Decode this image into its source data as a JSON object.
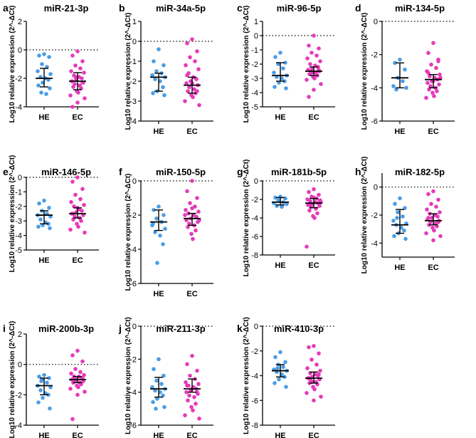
{
  "figure": {
    "y_label": "Log10 relative expression (2^-ΔCt)"
  },
  "colors": {
    "HE": "#4a9de6",
    "EC": "#e63ab9",
    "axis": "#000000"
  },
  "chart_data": [
    {
      "type": "scatter",
      "letter": "a",
      "title": "miR-21-3p",
      "categories": [
        "HE",
        "EC"
      ],
      "ylim": [
        -4,
        2
      ],
      "yticks": [
        2,
        0,
        -2,
        -4
      ],
      "ylabel": "Log10 relative expression (2^-ΔCt)",
      "series": [
        {
          "name": "HE",
          "median": -2.0,
          "q1": -2.6,
          "q3": -1.3,
          "values": [
            -0.3,
            -0.4,
            -0.5,
            -1.0,
            -1.2,
            -1.5,
            -1.7,
            -1.9,
            -2.0,
            -2.1,
            -2.3,
            -2.5,
            -2.7,
            -3.0,
            -3.1
          ]
        },
        {
          "name": "EC",
          "median": -2.2,
          "q1": -2.8,
          "q3": -1.6,
          "values": [
            -0.1,
            -0.4,
            -0.8,
            -1.1,
            -1.3,
            -1.5,
            -1.6,
            -1.8,
            -1.9,
            -2.0,
            -2.1,
            -2.2,
            -2.3,
            -2.4,
            -2.5,
            -2.6,
            -2.7,
            -2.9,
            -3.0,
            -3.2,
            -3.4,
            -3.7,
            -4.0,
            -2.3,
            -1.9
          ]
        }
      ]
    },
    {
      "type": "scatter",
      "letter": "b",
      "title": "miR-34a-5p",
      "categories": [
        "HE",
        "EC"
      ],
      "ylim": [
        -4,
        1
      ],
      "yticks": [
        1,
        0,
        -1,
        -2,
        -3,
        -4
      ],
      "ylabel": "Log10 relative expression (2^-ΔCt)",
      "series": [
        {
          "name": "HE",
          "median": -1.8,
          "q1": -2.5,
          "q3": -1.6,
          "values": [
            -0.4,
            -1.0,
            -1.2,
            -1.5,
            -1.6,
            -1.7,
            -1.8,
            -1.9,
            -2.0,
            -2.3,
            -2.5,
            -2.6,
            -2.7
          ]
        },
        {
          "name": "EC",
          "median": -2.2,
          "q1": -2.6,
          "q3": -1.8,
          "values": [
            0.1,
            -0.1,
            -0.5,
            -0.8,
            -1.0,
            -1.2,
            -1.4,
            -1.6,
            -1.8,
            -1.9,
            -2.0,
            -2.1,
            -2.2,
            -2.3,
            -2.4,
            -2.5,
            -2.6,
            -2.7,
            -2.8,
            -3.0,
            -3.2,
            -2.1,
            -1.7,
            -2.5
          ]
        }
      ]
    },
    {
      "type": "scatter",
      "letter": "c",
      "title": "miR-96-5p",
      "categories": [
        "HE",
        "EC"
      ],
      "ylim": [
        -5,
        1
      ],
      "yticks": [
        1,
        0,
        -1,
        -2,
        -3,
        -4,
        -5
      ],
      "ylabel": "Log10 relative expression (2^-ΔCt)",
      "series": [
        {
          "name": "HE",
          "median": -2.8,
          "q1": -3.2,
          "q3": -1.9,
          "values": [
            -1.2,
            -1.5,
            -1.9,
            -2.0,
            -2.3,
            -2.6,
            -2.8,
            -2.9,
            -3.0,
            -3.2,
            -3.3,
            -3.6,
            -3.7
          ]
        },
        {
          "name": "EC",
          "median": -2.5,
          "q1": -2.8,
          "q3": -2.2,
          "values": [
            0.0,
            -0.7,
            -0.9,
            -1.2,
            -1.4,
            -1.6,
            -1.8,
            -2.0,
            -2.1,
            -2.2,
            -2.3,
            -2.4,
            -2.5,
            -2.5,
            -2.6,
            -2.7,
            -2.8,
            -2.9,
            -3.0,
            -3.1,
            -3.4,
            -3.8,
            -4.3,
            -2.4,
            -2.6
          ]
        }
      ]
    },
    {
      "type": "scatter",
      "letter": "d",
      "title": "miR-134-5p",
      "categories": [
        "HE",
        "EC"
      ],
      "ylim": [
        -6,
        0
      ],
      "yticks": [
        0,
        -2,
        -4,
        -6
      ],
      "ylabel": "Log10 relative expression (2^-ΔCt)",
      "series": [
        {
          "name": "HE",
          "median": -3.4,
          "q1": -4.0,
          "q3": -2.5,
          "values": [
            -2.3,
            -2.5,
            -2.9,
            -3.4,
            -3.6,
            -3.9,
            -4.0,
            -4.1
          ]
        },
        {
          "name": "EC",
          "median": -3.5,
          "q1": -4.0,
          "q3": -3.2,
          "values": [
            -1.3,
            -1.9,
            -2.3,
            -2.6,
            -2.8,
            -3.0,
            -3.2,
            -3.3,
            -3.4,
            -3.5,
            -3.6,
            -3.7,
            -3.8,
            -3.9,
            -4.0,
            -4.1,
            -4.2,
            -4.3,
            -4.5,
            -4.6,
            -3.4,
            -3.6,
            -3.1,
            -2.4
          ]
        }
      ]
    },
    {
      "type": "scatter",
      "letter": "e",
      "title": "miR-146-5p",
      "categories": [
        "HE",
        "EC"
      ],
      "ylim": [
        -5,
        0
      ],
      "yticks": [
        0,
        -1,
        -2,
        -3,
        -4,
        -5
      ],
      "ylabel": "Log10 relative expression (2^-ΔCt)",
      "series": [
        {
          "name": "HE",
          "median": -2.6,
          "q1": -3.2,
          "q3": -2.3,
          "values": [
            -1.6,
            -1.8,
            -2.1,
            -2.3,
            -2.5,
            -2.6,
            -2.7,
            -2.9,
            -3.1,
            -3.2,
            -3.3,
            -3.4,
            -3.5
          ]
        },
        {
          "name": "EC",
          "median": -2.5,
          "q1": -2.8,
          "q3": -2.1,
          "values": [
            0.0,
            -0.3,
            -0.8,
            -1.2,
            -1.5,
            -1.7,
            -1.9,
            -2.0,
            -2.2,
            -2.3,
            -2.4,
            -2.5,
            -2.6,
            -2.7,
            -2.8,
            -2.9,
            -3.0,
            -3.2,
            -3.4,
            -3.6,
            -3.8,
            -2.1,
            -2.5
          ]
        }
      ]
    },
    {
      "type": "scatter",
      "letter": "f",
      "title": "miR-150-5p",
      "categories": [
        "HE",
        "EC"
      ],
      "ylim": [
        -6,
        0
      ],
      "yticks": [
        0,
        -2,
        -4,
        -6
      ],
      "ylabel": "Log10 relative expression (2^-ΔCt)",
      "series": [
        {
          "name": "HE",
          "median": -2.4,
          "q1": -2.9,
          "q3": -1.7,
          "values": [
            -1.5,
            -1.7,
            -2.0,
            -2.2,
            -2.4,
            -2.6,
            -2.8,
            -3.0,
            -3.2,
            -3.7,
            -4.8,
            -2.5
          ]
        },
        {
          "name": "EC",
          "median": -2.2,
          "q1": -2.6,
          "q3": -1.9,
          "values": [
            0.0,
            -0.6,
            -1.0,
            -1.3,
            -1.5,
            -1.7,
            -1.8,
            -1.9,
            -2.0,
            -2.1,
            -2.2,
            -2.3,
            -2.4,
            -2.5,
            -2.6,
            -2.7,
            -2.9,
            -3.1,
            -3.4,
            -2.0,
            -2.3,
            -1.6
          ]
        }
      ]
    },
    {
      "type": "scatter",
      "letter": "g",
      "title": "miR-181b-5p",
      "categories": [
        "HE",
        "EC"
      ],
      "ylim": [
        -8,
        0
      ],
      "yticks": [
        0,
        -2,
        -4,
        -6,
        -8
      ],
      "ylabel": "Log10 relative expression (2^-ΔCt)",
      "series": [
        {
          "name": "HE",
          "median": -2.3,
          "q1": -2.6,
          "q3": -1.8,
          "values": [
            -1.7,
            -1.8,
            -1.9,
            -2.1,
            -2.3,
            -2.4,
            -2.5,
            -2.7,
            -2.8
          ]
        },
        {
          "name": "EC",
          "median": -2.4,
          "q1": -2.9,
          "q3": -1.9,
          "values": [
            -0.9,
            -1.2,
            -1.5,
            -1.7,
            -1.9,
            -2.0,
            -2.1,
            -2.2,
            -2.3,
            -2.4,
            -2.5,
            -2.6,
            -2.7,
            -2.8,
            -3.0,
            -3.2,
            -3.5,
            -3.8,
            -4.0,
            -7.1,
            -2.3,
            -1.8,
            -2.6
          ]
        }
      ]
    },
    {
      "type": "scatter",
      "letter": "h",
      "title": "miR-182-5p",
      "categories": [
        "HE",
        "EC"
      ],
      "ylim": [
        -5,
        1
      ],
      "yticks": [
        0,
        -2,
        -4
      ],
      "ylabel": "Log10 relative expression (2^-ΔCt)",
      "series": [
        {
          "name": "HE",
          "median": -2.7,
          "q1": -3.3,
          "q3": -1.6,
          "values": [
            -0.8,
            -1.2,
            -1.5,
            -1.8,
            -2.1,
            -2.4,
            -2.6,
            -2.7,
            -2.9,
            -3.1,
            -3.3,
            -3.5,
            -3.7,
            -2.2
          ]
        },
        {
          "name": "EC",
          "median": -2.4,
          "q1": -2.7,
          "q3": -1.9,
          "values": [
            -0.3,
            -0.5,
            -0.9,
            -1.2,
            -1.4,
            -1.6,
            -1.8,
            -1.9,
            -2.0,
            -2.1,
            -2.2,
            -2.3,
            -2.4,
            -2.5,
            -2.6,
            -2.7,
            -2.8,
            -2.9,
            -3.1,
            -3.3,
            -3.5,
            -3.8,
            -2.2,
            -2.5
          ]
        }
      ]
    },
    {
      "type": "scatter",
      "letter": "i",
      "title": "miR-200b-3p",
      "categories": [
        "HE",
        "EC"
      ],
      "ylim": [
        -4,
        2
      ],
      "yticks": [
        2,
        0,
        -2,
        -4
      ],
      "ylabel": "Log10 relative expression (2^-ΔCt)",
      "series": [
        {
          "name": "HE",
          "median": -1.4,
          "q1": -2.0,
          "q3": -0.9,
          "values": [
            -0.7,
            -0.8,
            -0.9,
            -1.0,
            -1.2,
            -1.4,
            -1.5,
            -1.7,
            -1.9,
            -2.0,
            -2.2,
            -2.5,
            -2.9,
            -1.1
          ]
        },
        {
          "name": "EC",
          "median": -1.0,
          "q1": -1.2,
          "q3": -0.8,
          "values": [
            0.9,
            0.6,
            0.2,
            -0.3,
            -0.5,
            -0.6,
            -0.7,
            -0.8,
            -0.8,
            -0.9,
            -1.0,
            -1.0,
            -1.1,
            -1.1,
            -1.2,
            -1.2,
            -1.3,
            -1.4,
            -1.5,
            -1.6,
            -1.8,
            -2.0,
            -3.6,
            -0.9,
            -1.0
          ]
        }
      ]
    },
    {
      "type": "scatter",
      "letter": "j",
      "title": "miR-211-3p",
      "categories": [
        "HE",
        "EC"
      ],
      "ylim": [
        -6,
        0
      ],
      "yticks": [
        0,
        -2,
        -4,
        -6
      ],
      "ylabel": "Log10 relative expression (2^-ΔCt)",
      "series": [
        {
          "name": "HE",
          "median": -3.8,
          "q1": -4.3,
          "q3": -3.1,
          "values": [
            -2.0,
            -2.6,
            -3.0,
            -3.3,
            -3.5,
            -3.7,
            -3.8,
            -3.9,
            -4.0,
            -4.2,
            -4.4,
            -4.6,
            -4.9,
            -5.0
          ]
        },
        {
          "name": "EC",
          "median": -3.8,
          "q1": -4.0,
          "q3": -3.2,
          "values": [
            -1.8,
            -2.3,
            -2.7,
            -3.0,
            -3.2,
            -3.4,
            -3.5,
            -3.6,
            -3.7,
            -3.8,
            -3.9,
            -4.0,
            -4.1,
            -4.2,
            -4.3,
            -4.5,
            -4.7,
            -4.9,
            -5.1,
            -5.4,
            -5.6,
            -3.8,
            -3.6,
            -4.0
          ]
        }
      ]
    },
    {
      "type": "scatter",
      "letter": "k",
      "title": "miR-410-3p",
      "categories": [
        "HE",
        "EC"
      ],
      "ylim": [
        -8,
        0
      ],
      "yticks": [
        0,
        -2,
        -4,
        -6,
        -8
      ],
      "ylabel": "Log10 relative expression (2^-ΔCt)",
      "series": [
        {
          "name": "HE",
          "median": -3.6,
          "q1": -4.1,
          "q3": -3.1,
          "values": [
            -2.1,
            -2.5,
            -2.9,
            -3.1,
            -3.3,
            -3.5,
            -3.6,
            -3.7,
            -3.9,
            -4.1,
            -4.3,
            -4.6,
            -4.9,
            -3.4
          ]
        },
        {
          "name": "EC",
          "median": -4.2,
          "q1": -4.6,
          "q3": -3.7,
          "values": [
            -1.6,
            -1.7,
            -2.2,
            -2.7,
            -3.1,
            -3.4,
            -3.6,
            -3.8,
            -3.9,
            -4.0,
            -4.1,
            -4.2,
            -4.3,
            -4.4,
            -4.5,
            -4.6,
            -4.7,
            -4.9,
            -5.1,
            -5.4,
            -5.7,
            -6.0,
            -4.2,
            -3.9,
            -4.5
          ]
        }
      ]
    }
  ]
}
